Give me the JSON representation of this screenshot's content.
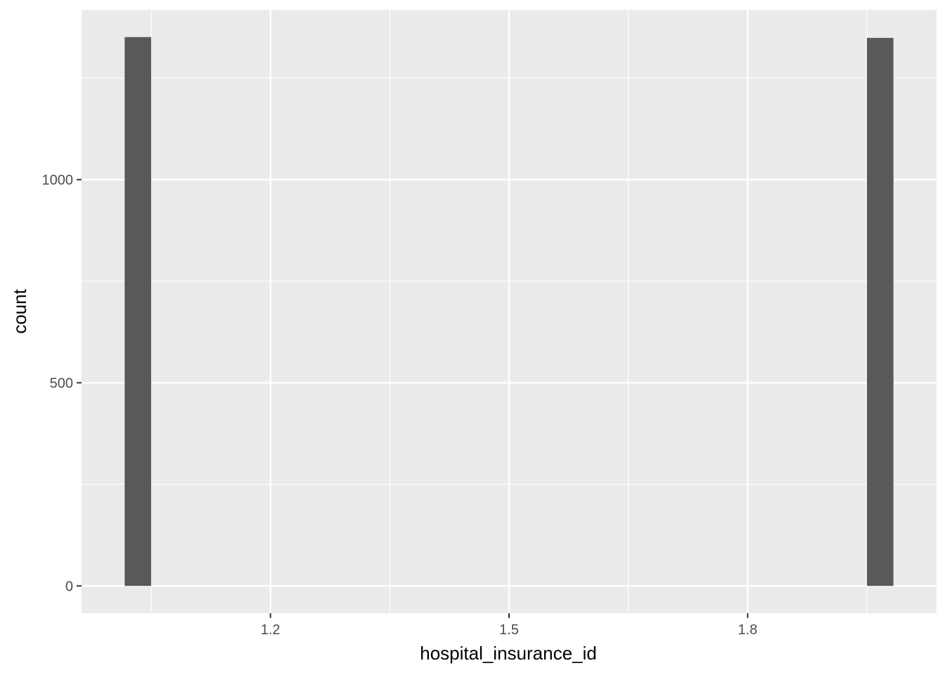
{
  "chart_data": {
    "type": "bar",
    "subtype": "histogram",
    "title": "",
    "xlabel": "hospital_insurance_id",
    "ylabel": "count",
    "xlim": [
      0.9625,
      2.0375
    ],
    "ylim": [
      -67,
      1418
    ],
    "x_ticks": [
      {
        "value": 1.2,
        "label": "1.2"
      },
      {
        "value": 1.5,
        "label": "1.5"
      },
      {
        "value": 1.8,
        "label": "1.8"
      }
    ],
    "x_minor_ticks": [
      1.05,
      1.35,
      1.65,
      1.95
    ],
    "y_ticks": [
      {
        "value": 0,
        "label": "0"
      },
      {
        "value": 500,
        "label": "500"
      },
      {
        "value": 1000,
        "label": "1000"
      }
    ],
    "y_minor_ticks": [
      250,
      750,
      1250
    ],
    "bins": [
      {
        "x0": 1.0167,
        "x1": 1.05,
        "count": 1351
      },
      {
        "x0": 1.95,
        "x1": 1.9833,
        "count": 1349
      }
    ],
    "grid": true,
    "legend": "none",
    "colors": {
      "panel": "#ebebeb",
      "grid": "#ffffff",
      "bar": "#595959",
      "tick": "#333333"
    }
  }
}
